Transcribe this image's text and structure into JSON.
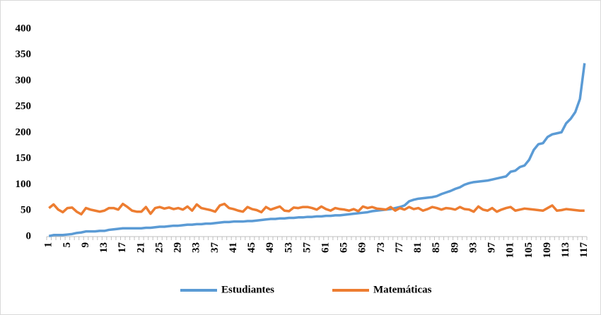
{
  "chart_data": {
    "type": "line",
    "categories": [
      "1",
      null,
      null,
      null,
      "5",
      null,
      null,
      null,
      "9",
      null,
      null,
      null,
      "13",
      null,
      null,
      null,
      "17",
      null,
      null,
      null,
      "21",
      null,
      null,
      null,
      "25",
      null,
      null,
      null,
      "29",
      null,
      null,
      null,
      "33",
      null,
      null,
      null,
      "37",
      null,
      null,
      null,
      "41",
      null,
      null,
      null,
      "45",
      null,
      null,
      null,
      "49",
      null,
      null,
      null,
      "53",
      null,
      null,
      null,
      "57",
      null,
      null,
      null,
      "61",
      null,
      null,
      null,
      "65",
      null,
      null,
      null,
      "69",
      null,
      null,
      null,
      "73",
      null,
      null,
      null,
      "77",
      null,
      null,
      null,
      "81",
      null,
      null,
      null,
      "85",
      null,
      null,
      null,
      "89",
      null,
      null,
      null,
      "93",
      null,
      null,
      null,
      "97",
      null,
      null,
      null,
      "101",
      null,
      null,
      null,
      "105",
      null,
      null,
      null,
      "109",
      null,
      null,
      null,
      "113",
      null,
      null,
      null,
      "117"
    ],
    "series": [
      {
        "name": "Estudiantes",
        "color": "#5b9bd5",
        "values": [
          1,
          3,
          3,
          3,
          4,
          5,
          7,
          8,
          10,
          10,
          10,
          11,
          11,
          13,
          14,
          15,
          16,
          16,
          16,
          16,
          16,
          17,
          17,
          18,
          19,
          19,
          20,
          21,
          21,
          22,
          23,
          23,
          24,
          24,
          25,
          25,
          26,
          27,
          28,
          28,
          29,
          29,
          29,
          30,
          30,
          31,
          32,
          33,
          34,
          34,
          35,
          35,
          36,
          36,
          37,
          37,
          38,
          38,
          39,
          39,
          40,
          40,
          41,
          41,
          42,
          43,
          44,
          45,
          46,
          47,
          49,
          50,
          51,
          52,
          53,
          55,
          57,
          60,
          68,
          71,
          73,
          74,
          75,
          76,
          78,
          82,
          85,
          88,
          92,
          95,
          100,
          103,
          105,
          106,
          107,
          108,
          110,
          112,
          114,
          116,
          125,
          127,
          134,
          137,
          148,
          167,
          178,
          180,
          192,
          197,
          199,
          201,
          218,
          227,
          240,
          265,
          334
        ]
      },
      {
        "name": "Matemáticas",
        "color": "#ed7d31",
        "values": [
          55,
          62,
          52,
          47,
          55,
          56,
          48,
          43,
          55,
          52,
          50,
          48,
          50,
          55,
          55,
          52,
          63,
          57,
          50,
          48,
          48,
          57,
          44,
          55,
          57,
          54,
          56,
          53,
          55,
          52,
          58,
          50,
          62,
          55,
          53,
          51,
          48,
          60,
          63,
          55,
          53,
          50,
          48,
          57,
          53,
          51,
          47,
          57,
          52,
          55,
          58,
          50,
          49,
          56,
          55,
          57,
          57,
          55,
          52,
          58,
          53,
          50,
          55,
          53,
          52,
          50,
          53,
          49,
          58,
          55,
          57,
          54,
          53,
          52,
          57,
          50,
          55,
          52,
          57,
          53,
          55,
          50,
          53,
          57,
          55,
          52,
          55,
          54,
          52,
          57,
          53,
          52,
          48,
          58,
          52,
          50,
          55,
          48,
          52,
          55,
          57,
          50,
          52,
          54,
          53,
          52,
          51,
          50,
          55,
          60,
          50,
          51,
          53,
          52,
          51,
          50,
          50
        ]
      }
    ],
    "ylim": [
      0,
      400
    ],
    "yticks": [
      0,
      50,
      100,
      150,
      200,
      250,
      300,
      350,
      400
    ],
    "grid": false,
    "legend": "bottom"
  }
}
